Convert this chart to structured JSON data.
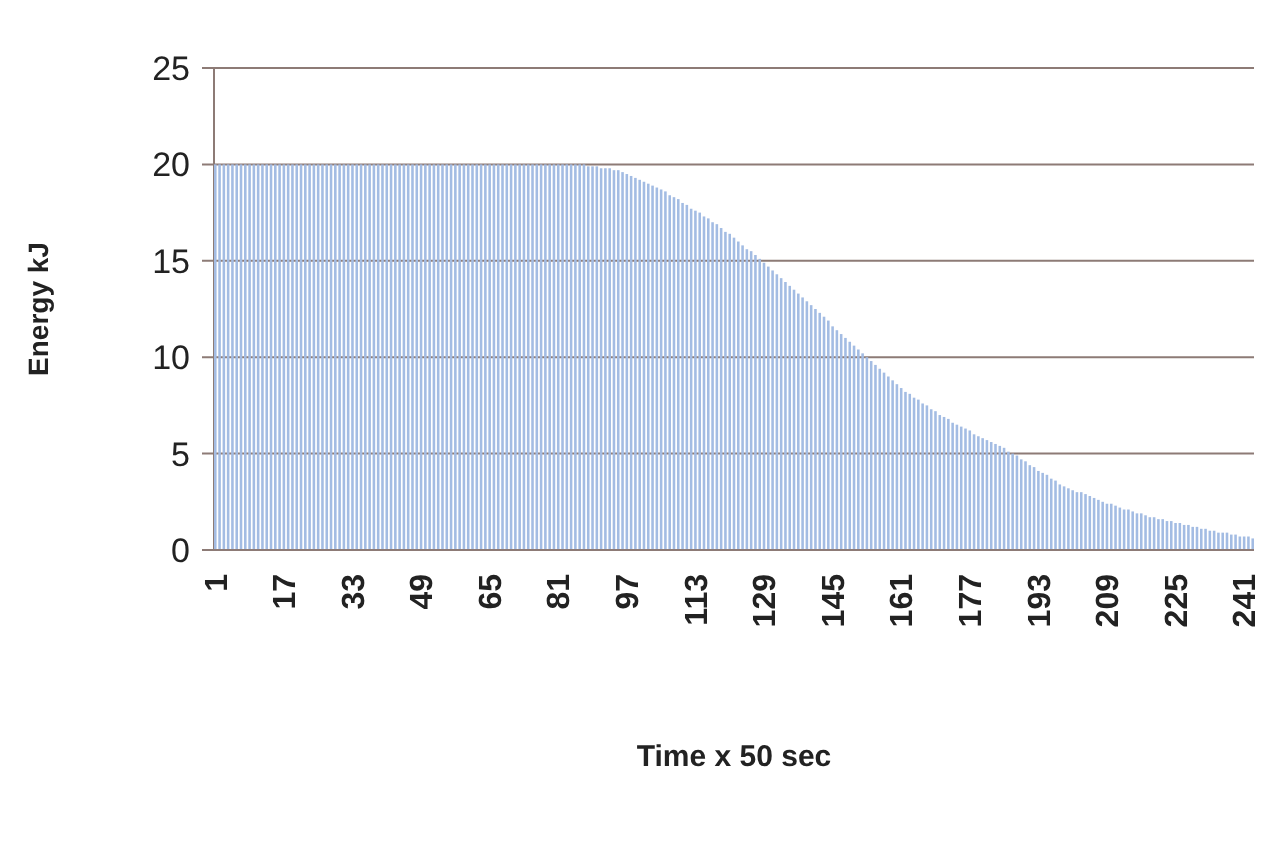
{
  "chart_data": {
    "type": "bar",
    "xlabel": "Time x 50 sec",
    "ylabel": "Energy kJ",
    "categories": [
      "1",
      null,
      null,
      null,
      null,
      null,
      null,
      null,
      null,
      null,
      null,
      null,
      null,
      null,
      null,
      null,
      "17",
      null,
      null,
      null,
      null,
      null,
      null,
      null,
      null,
      null,
      null,
      null,
      null,
      null,
      null,
      null,
      "33",
      null,
      null,
      null,
      null,
      null,
      null,
      null,
      null,
      null,
      null,
      null,
      null,
      null,
      null,
      null,
      "49",
      null,
      null,
      null,
      null,
      null,
      null,
      null,
      null,
      null,
      null,
      null,
      null,
      null,
      null,
      null,
      "65",
      null,
      null,
      null,
      null,
      null,
      null,
      null,
      null,
      null,
      null,
      null,
      null,
      null,
      null,
      null,
      "81",
      null,
      null,
      null,
      null,
      null,
      null,
      null,
      null,
      null,
      null,
      null,
      null,
      null,
      null,
      null,
      "97",
      null,
      null,
      null,
      null,
      null,
      null,
      null,
      null,
      null,
      null,
      null,
      null,
      null,
      null,
      null,
      "113",
      null,
      null,
      null,
      null,
      null,
      null,
      null,
      null,
      null,
      null,
      null,
      null,
      null,
      null,
      null,
      "129",
      null,
      null,
      null,
      null,
      null,
      null,
      null,
      null,
      null,
      null,
      null,
      null,
      null,
      null,
      null,
      "145",
      null,
      null,
      null,
      null,
      null,
      null,
      null,
      null,
      null,
      null,
      null,
      null,
      null,
      null,
      null,
      "161",
      null,
      null,
      null,
      null,
      null,
      null,
      null,
      null,
      null,
      null,
      null,
      null,
      null,
      null,
      null,
      "177",
      null,
      null,
      null,
      null,
      null,
      null,
      null,
      null,
      null,
      null,
      null,
      null,
      null,
      null,
      null,
      "193",
      null,
      null,
      null,
      null,
      null,
      null,
      null,
      null,
      null,
      null,
      null,
      null,
      null,
      null,
      null,
      "209",
      null,
      null,
      null,
      null,
      null,
      null,
      null,
      null,
      null,
      null,
      null,
      null,
      null,
      null,
      null,
      "225",
      null,
      null,
      null,
      null,
      null,
      null,
      null,
      null,
      null,
      null,
      null,
      null,
      null,
      null,
      null,
      "241",
      null,
      null
    ],
    "values": [
      20,
      20,
      20,
      20,
      20,
      20,
      20,
      20,
      20,
      20,
      20,
      20,
      20,
      20,
      20,
      20,
      20,
      20,
      20,
      20,
      20,
      20,
      20,
      20,
      20,
      20,
      20,
      20,
      20,
      20,
      20,
      20,
      20,
      20,
      20,
      20,
      20,
      20,
      20,
      20,
      20,
      20,
      20,
      20,
      20,
      20,
      20,
      20,
      20,
      20,
      20,
      20,
      20,
      20,
      20,
      20,
      20,
      20,
      20,
      20,
      20,
      20,
      20,
      20,
      20,
      20,
      20,
      20,
      20,
      20,
      20,
      20,
      20,
      20,
      20,
      20,
      20,
      20,
      20,
      20,
      20,
      20,
      20,
      20,
      20,
      20,
      20,
      19.9,
      19.9,
      19.9,
      19.8,
      19.8,
      19.8,
      19.7,
      19.7,
      19.6,
      19.5,
      19.4,
      19.3,
      19.2,
      19.1,
      19.0,
      18.9,
      18.8,
      18.7,
      18.6,
      18.4,
      18.3,
      18.2,
      18.0,
      17.9,
      17.7,
      17.6,
      17.5,
      17.3,
      17.2,
      17.0,
      16.9,
      16.7,
      16.5,
      16.4,
      16.2,
      16.0,
      15.8,
      15.6,
      15.5,
      15.3,
      15.1,
      14.9,
      14.7,
      14.5,
      14.3,
      14.1,
      13.9,
      13.7,
      13.5,
      13.3,
      13.1,
      12.9,
      12.7,
      12.5,
      12.3,
      12.1,
      11.9,
      11.6,
      11.4,
      11.2,
      11.0,
      10.8,
      10.6,
      10.4,
      10.2,
      10.0,
      9.8,
      9.6,
      9.4,
      9.2,
      9.0,
      8.8,
      8.6,
      8.4,
      8.2,
      8.1,
      7.9,
      7.8,
      7.6,
      7.5,
      7.3,
      7.2,
      7.0,
      6.9,
      6.8,
      6.6,
      6.5,
      6.4,
      6.3,
      6.2,
      6.0,
      5.9,
      5.8,
      5.7,
      5.6,
      5.5,
      5.4,
      5.3,
      5.1,
      5.0,
      4.9,
      4.7,
      4.6,
      4.4,
      4.3,
      4.1,
      4.0,
      3.9,
      3.7,
      3.6,
      3.4,
      3.3,
      3.2,
      3.1,
      3.0,
      3.0,
      2.9,
      2.8,
      2.7,
      2.6,
      2.5,
      2.4,
      2.4,
      2.3,
      2.2,
      2.1,
      2.1,
      2.0,
      1.9,
      1.9,
      1.8,
      1.7,
      1.7,
      1.6,
      1.6,
      1.5,
      1.5,
      1.4,
      1.4,
      1.3,
      1.3,
      1.2,
      1.2,
      1.1,
      1.1,
      1.0,
      1.0,
      0.9,
      0.9,
      0.9,
      0.8,
      0.8,
      0.7,
      0.7,
      0.7,
      0.6
    ],
    "color": "#a3bce3",
    "ylim": [
      0,
      25
    ],
    "yticks": [
      0,
      5,
      10,
      15,
      20,
      25
    ],
    "grid": "y"
  }
}
